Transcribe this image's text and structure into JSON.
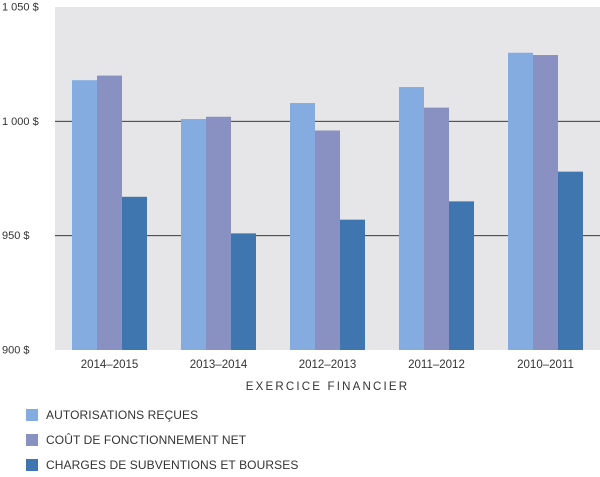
{
  "chart_data": {
    "type": "bar",
    "categories": [
      "2014–2015",
      "2013–2014",
      "2012–2013",
      "2011–2012",
      "2010–2011"
    ],
    "series": [
      {
        "name": "AUTORISATIONS REÇUES",
        "color": "#84ace0",
        "values": [
          1018,
          1001,
          1008,
          1015,
          1030
        ]
      },
      {
        "name": "COÛT DE FONCTIONNEMENT NET",
        "color": "#8991c2",
        "values": [
          1020,
          1002,
          996,
          1006,
          1029
        ]
      },
      {
        "name": "CHARGES DE SUBVENTIONS ET BOURSES",
        "color": "#3f76af",
        "values": [
          967,
          951,
          957,
          965,
          978
        ]
      }
    ],
    "xlabel": "EXERCICE FINANCIER",
    "ylabel": "",
    "ylim": [
      900,
      1050
    ],
    "yticks": [
      900,
      950,
      1000,
      1050
    ],
    "ytick_labels": [
      "900 $",
      "950 $",
      "1 000 $",
      "1 050 $"
    ],
    "grid": true,
    "legend_position": "bottom-left",
    "plot_background": "#e6e6e9"
  }
}
